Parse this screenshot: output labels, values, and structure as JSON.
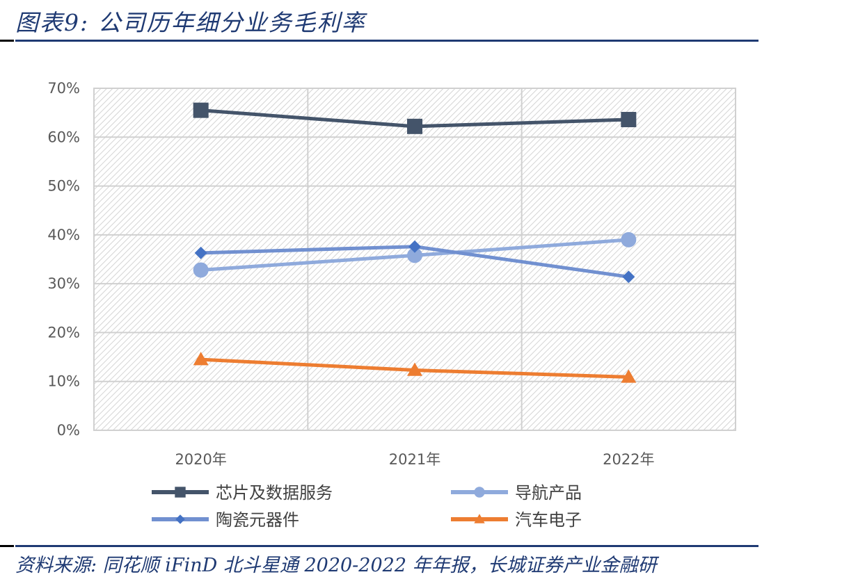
{
  "title": "图表9: 公司历年细分业务毛利率",
  "source": "资料来源: 同花顺 iFinD 北斗星通 2020-2022 年年报，长城证券产业金融研",
  "chart_data": {
    "type": "line",
    "categories": [
      "2020年",
      "2021年",
      "2022年"
    ],
    "ylim": [
      0,
      70
    ],
    "yticks": [
      "0%",
      "10%",
      "20%",
      "30%",
      "40%",
      "50%",
      "60%",
      "70%"
    ],
    "grid": true,
    "legend_position": "bottom",
    "series": [
      {
        "name": "芯片及数据服务",
        "values": [
          65.5,
          62.2,
          63.6
        ],
        "color": "#44546A",
        "marker": "square"
      },
      {
        "name": "导航产品",
        "values": [
          32.8,
          35.8,
          39.0
        ],
        "color": "#8FAADC",
        "marker": "circle"
      },
      {
        "name": "陶瓷元器件",
        "values": [
          36.3,
          37.6,
          31.4
        ],
        "color": "#7190D0",
        "marker": "diamond",
        "marker_color": "#4472C4"
      },
      {
        "name": "汽车电子",
        "values": [
          14.5,
          12.3,
          10.9
        ],
        "color": "#ED7D31",
        "marker": "triangle"
      }
    ]
  }
}
